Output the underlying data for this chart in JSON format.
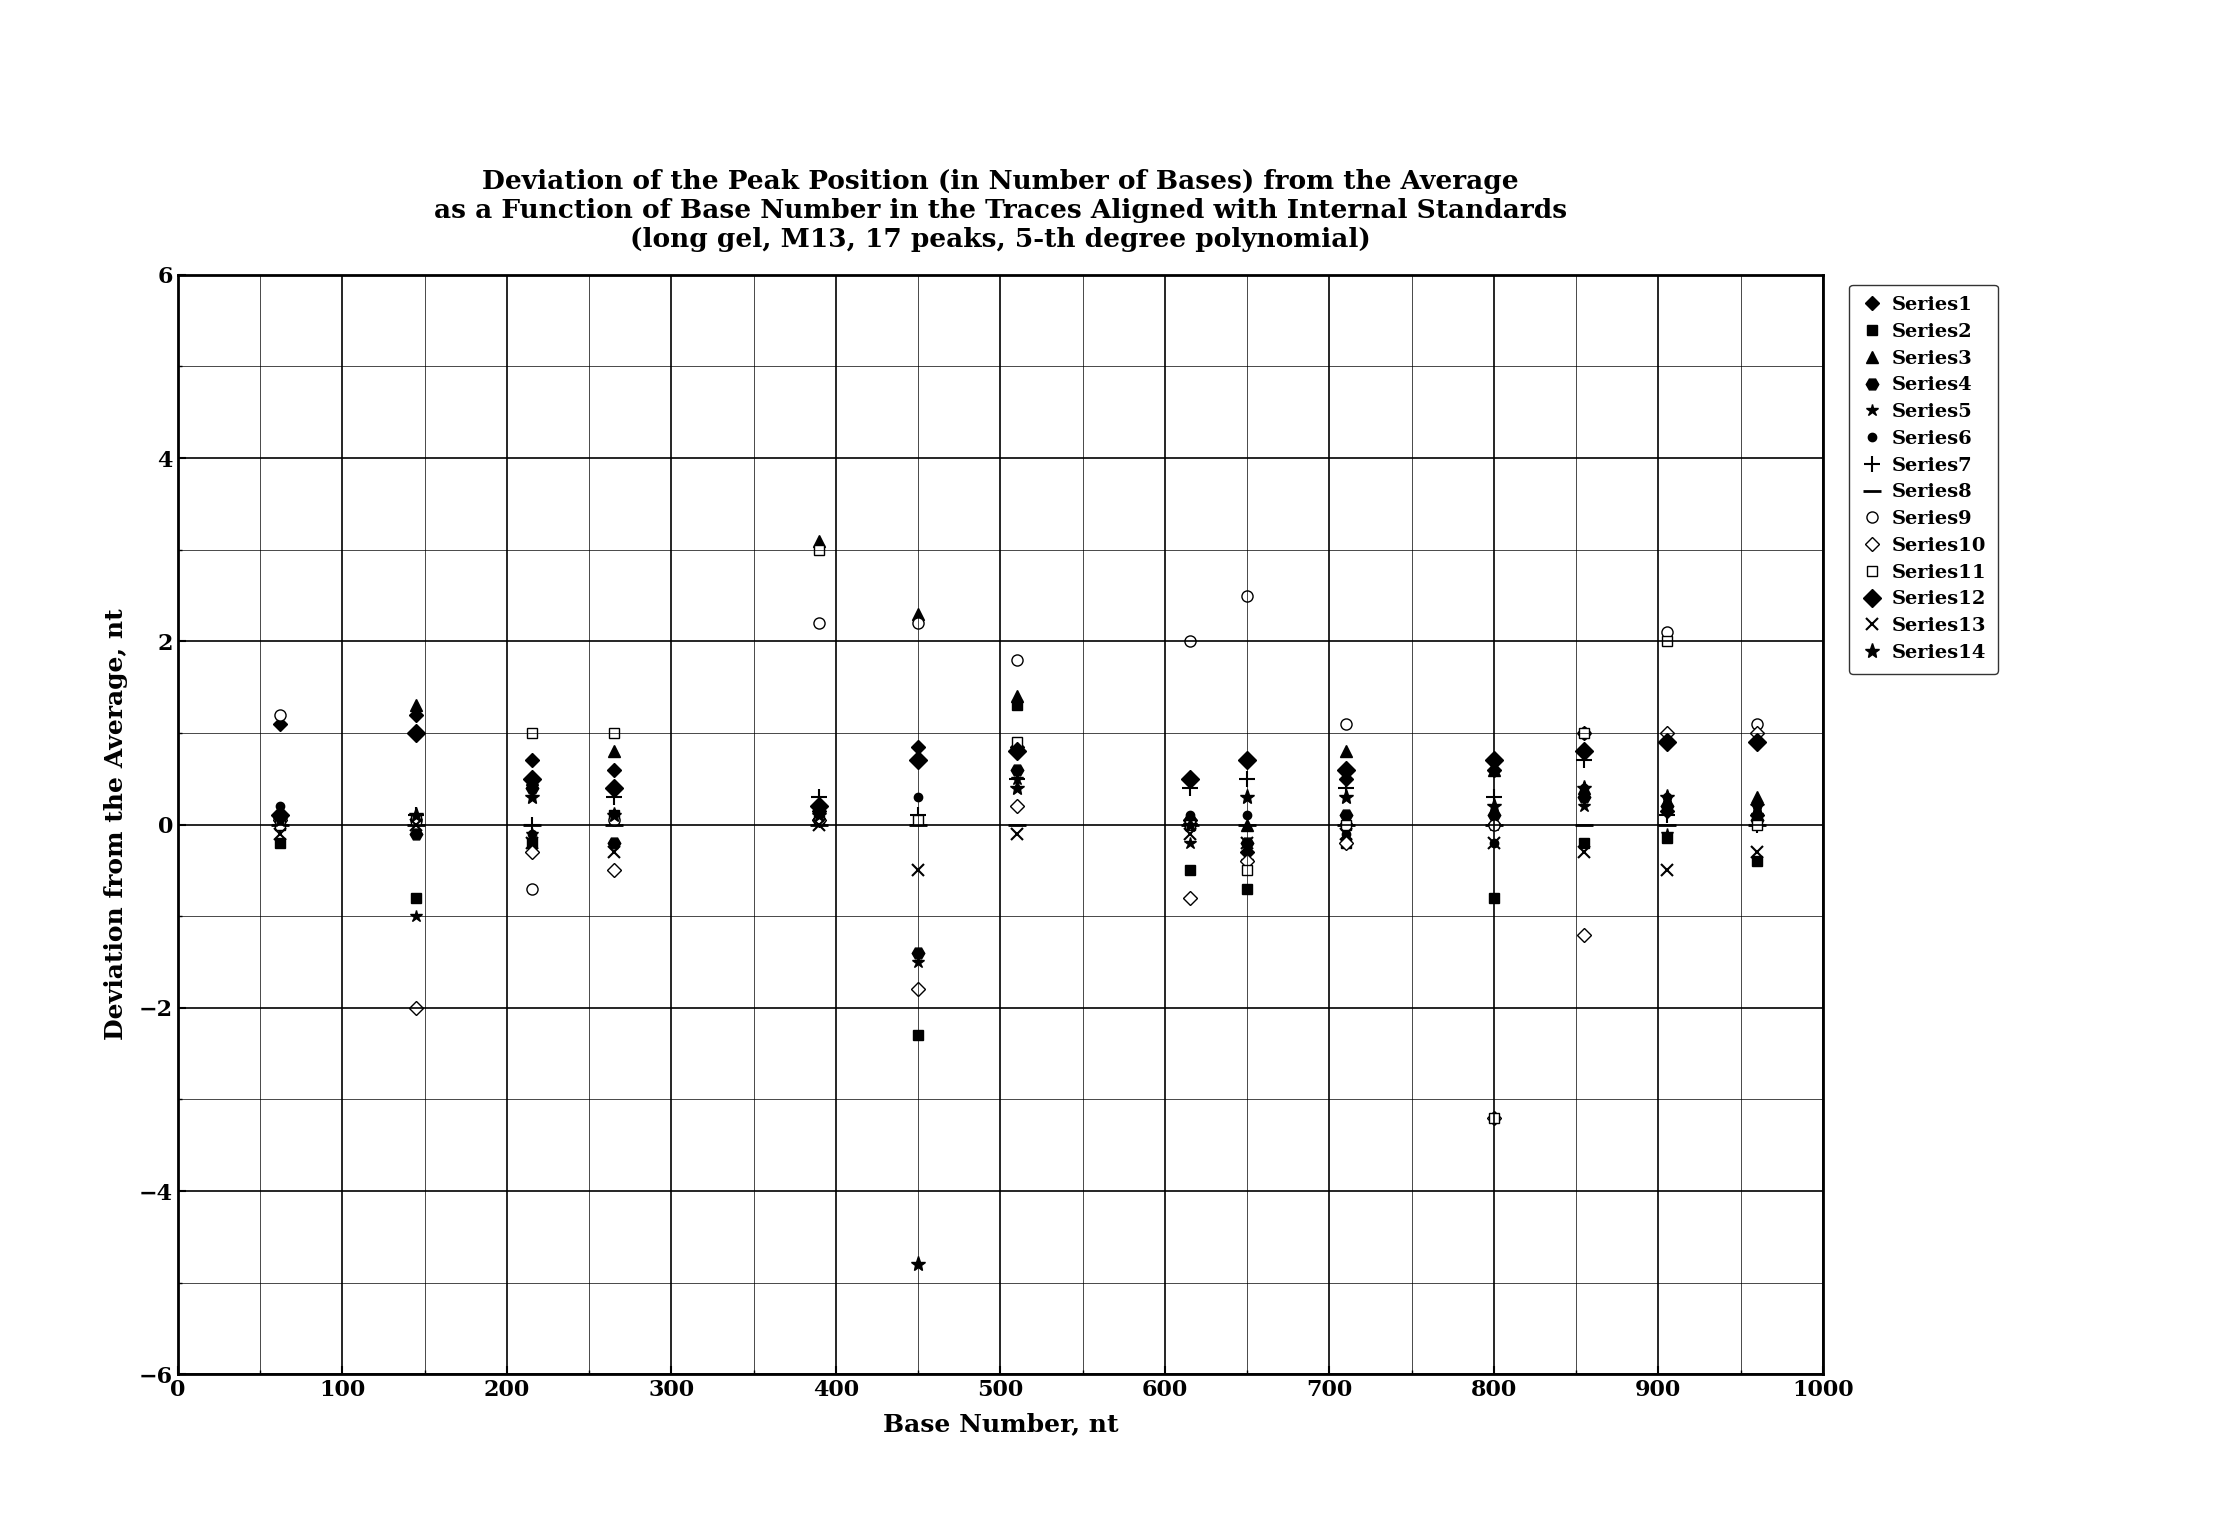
{
  "title_line1": "Deviation of the Peak Position (in Number of Bases) from the Average",
  "title_line2": "as a Function of Base Number in the Traces Aligned with Internal Standards",
  "title_line3": "(long gel, M13, 17 peaks, 5-th degree polynomial)",
  "xlabel": "Base Number, nt",
  "ylabel": "Deviation from the Average, nt",
  "xlim": [
    0,
    1000
  ],
  "ylim": [
    -6,
    6
  ],
  "xticks": [
    0,
    100,
    200,
    300,
    400,
    500,
    600,
    700,
    800,
    900,
    1000
  ],
  "yticks": [
    -6,
    -4,
    -2,
    0,
    2,
    4,
    6
  ],
  "background_color": "#ffffff",
  "series_names": [
    "Series1",
    "Series2",
    "Series3",
    "Series4",
    "Series5",
    "Series6",
    "Series7",
    "Series8",
    "Series9",
    "Series10",
    "Series11",
    "Series12",
    "Series13",
    "Series14"
  ],
  "markers": [
    "D",
    "s",
    "^",
    "H",
    "*",
    "o",
    "+",
    "_",
    "o",
    "D",
    "s",
    "D",
    "x",
    "*"
  ],
  "mfc": [
    "black",
    "black",
    "black",
    "black",
    "black",
    "black",
    "black",
    "black",
    "white",
    "white",
    "white",
    "black",
    "black",
    "black"
  ],
  "mec": [
    "black",
    "black",
    "black",
    "black",
    "black",
    "black",
    "black",
    "black",
    "black",
    "black",
    "black",
    "black",
    "black",
    "black"
  ],
  "ms": [
    7,
    7,
    8,
    9,
    9,
    6,
    11,
    13,
    8,
    7,
    7,
    9,
    9,
    11
  ],
  "mew": [
    1.0,
    1.0,
    1.0,
    1.0,
    1.0,
    1.0,
    1.5,
    2.0,
    1.0,
    1.0,
    1.0,
    1.0,
    1.5,
    1.0
  ],
  "x_all": [
    62,
    145,
    215,
    265,
    390,
    450,
    510,
    615,
    650,
    710,
    800,
    855,
    905,
    960
  ],
  "y": {
    "Series1": [
      1.1,
      1.2,
      0.7,
      0.6,
      0.15,
      0.85,
      0.85,
      0.05,
      -0.3,
      0.5,
      0.6,
      1.0,
      0.15,
      0.1
    ],
    "Series2": [
      -0.2,
      -0.8,
      -0.2,
      0.1,
      0.05,
      -2.3,
      1.3,
      -0.5,
      -0.7,
      -0.2,
      -0.8,
      -0.2,
      -0.15,
      -0.4
    ],
    "Series3": [
      0.1,
      1.3,
      0.5,
      0.8,
      3.1,
      2.3,
      1.4,
      0.05,
      0.0,
      0.8,
      0.6,
      0.4,
      0.2,
      0.3
    ],
    "Series4": [
      0.05,
      -0.1,
      0.4,
      -0.2,
      0.05,
      -1.4,
      0.6,
      0.05,
      -0.2,
      0.1,
      0.1,
      0.3,
      0.2,
      0.05
    ],
    "Series5": [
      0.1,
      -1.0,
      -0.1,
      0.1,
      0.05,
      -1.5,
      0.5,
      -0.2,
      -0.4,
      0.0,
      0.0,
      0.2,
      -0.1,
      0.1
    ],
    "Series6": [
      0.2,
      0.05,
      -0.1,
      -0.5,
      0.2,
      0.3,
      0.8,
      0.1,
      0.1,
      -0.1,
      -0.2,
      0.4,
      0.3,
      0.2
    ],
    "Series7": [
      0.0,
      0.1,
      0.0,
      0.3,
      0.3,
      0.1,
      0.5,
      0.4,
      0.5,
      0.4,
      0.3,
      0.7,
      0.1,
      0.0
    ],
    "Series8": [
      0.0,
      0.0,
      0.0,
      0.0,
      0.0,
      0.0,
      0.0,
      0.0,
      0.0,
      0.0,
      0.0,
      0.0,
      0.0,
      0.0
    ],
    "Series9": [
      1.2,
      0.05,
      -0.7,
      0.05,
      2.2,
      2.2,
      1.8,
      2.0,
      2.5,
      1.1,
      0.0,
      1.0,
      2.1,
      1.1
    ],
    "Series10": [
      0.05,
      -2.0,
      -0.3,
      -0.5,
      0.05,
      -1.8,
      0.2,
      -0.8,
      -0.4,
      -0.2,
      -3.2,
      -1.2,
      1.0,
      1.0
    ],
    "Series11": [
      0.0,
      0.05,
      1.0,
      1.0,
      3.0,
      0.05,
      0.9,
      0.0,
      -0.5,
      0.0,
      -3.2,
      1.0,
      2.0,
      0.0
    ],
    "Series12": [
      0.1,
      1.0,
      0.5,
      0.4,
      0.2,
      0.7,
      0.8,
      0.5,
      0.7,
      0.6,
      0.7,
      0.8,
      0.9,
      0.9
    ],
    "Series13": [
      -0.1,
      0.0,
      -0.2,
      -0.3,
      0.0,
      -0.5,
      -0.1,
      -0.1,
      -0.2,
      -0.1,
      -0.2,
      -0.3,
      -0.5,
      -0.3
    ],
    "Series14": [
      0.05,
      0.1,
      0.3,
      0.1,
      0.1,
      -4.8,
      0.4,
      0.0,
      0.3,
      0.3,
      0.2,
      0.4,
      0.3,
      0.2
    ]
  }
}
